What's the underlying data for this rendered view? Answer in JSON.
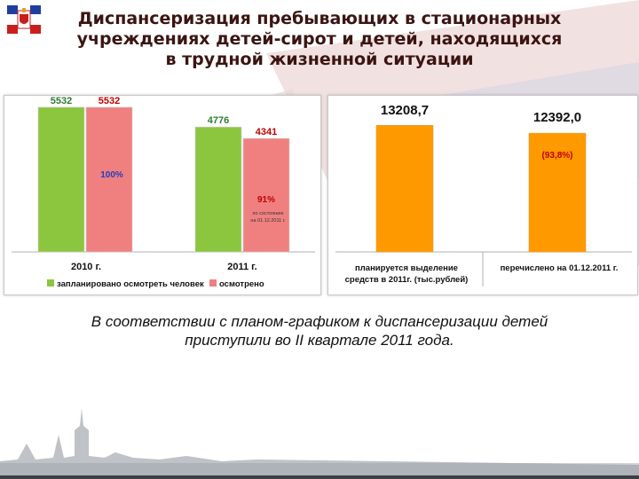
{
  "title": {
    "line1": "Диспансеризация пребывающих в стационарных",
    "line2": "учреждениях детей-сирот и детей, находящихся",
    "line3": "в трудной жизненной ситуации"
  },
  "chart_data": [
    {
      "type": "bar",
      "categories": [
        "2010 г.",
        "2011 г."
      ],
      "series": [
        {
          "name": "запланировано осмотреть человек",
          "values": [
            5532,
            4776
          ],
          "color": "#8cc63f"
        },
        {
          "name": "осмотрено",
          "values": [
            5532,
            4341
          ],
          "color": "#f08080"
        }
      ],
      "value_labels": [
        [
          "5532",
          "4776"
        ],
        [
          "5532",
          "4341"
        ]
      ],
      "ylim": [
        0,
        5800
      ],
      "annotations": [
        "100%",
        "91%",
        "по состоянию",
        "на 01.12.2011 г."
      ],
      "legend_position": "bottom"
    },
    {
      "type": "bar",
      "categories": [
        "планируется выделение средств в 2011г. (тыс.рублей)",
        "перечислено на 01.12.2011 г."
      ],
      "category_lines": [
        [
          "планируется выделение",
          "средств в 2011г. (тыс.рублей)"
        ],
        [
          "перечислено на 01.12.2011 г."
        ]
      ],
      "values": [
        13208.7,
        12392.0
      ],
      "value_labels": [
        "13208,7",
        "12392,0"
      ],
      "color": "#ff9900",
      "ylim": [
        0,
        13700
      ],
      "annotations": [
        "(93,8%)"
      ]
    }
  ],
  "colors": {
    "green": "#8cc63f",
    "pink": "#f08080",
    "orange": "#ff9900",
    "title": "#3b1512",
    "red": "#cc0000",
    "blue": "#1f3fbf"
  },
  "text": {
    "line1": "В соответствии с планом-графиком к диспансеризации детей",
    "line2": "приступили во II квартале 2011 года."
  },
  "icons": [
    "coat-of-arms-icon"
  ]
}
